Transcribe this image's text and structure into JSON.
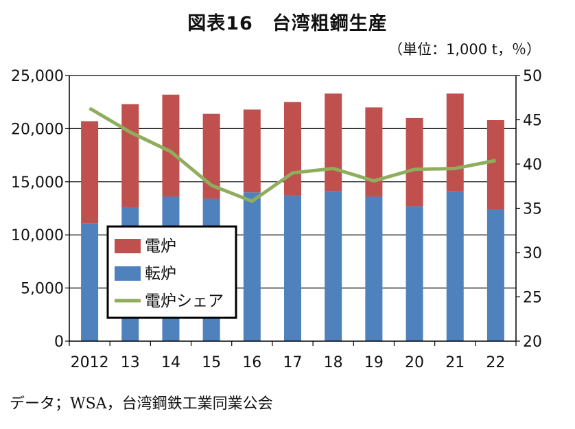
{
  "chart_data": {
    "type": "bar",
    "title": "図表16　台湾粗鋼生産",
    "unit_note": "（単位：1,000 t，％）",
    "source": "データ；WSA，台湾鋼鉄工業同業公会",
    "categories": [
      "2012",
      "13",
      "14",
      "15",
      "16",
      "17",
      "18",
      "19",
      "20",
      "21",
      "22"
    ],
    "stacked": true,
    "series": [
      {
        "name": "転炉",
        "kind": "bar",
        "axis": "left",
        "color": "#4f81bd",
        "values": [
          11100,
          12600,
          13600,
          13400,
          14000,
          13700,
          14100,
          13600,
          12700,
          14100,
          12400
        ]
      },
      {
        "name": "電炉",
        "kind": "bar",
        "axis": "left",
        "color": "#c0504d",
        "values": [
          9600,
          9700,
          9600,
          8000,
          7800,
          8800,
          9200,
          8400,
          8300,
          9200,
          8400
        ]
      },
      {
        "name": "電炉シェア",
        "kind": "line",
        "axis": "right",
        "color": "#8fae5d",
        "values": [
          46.3,
          43.6,
          41.4,
          37.6,
          35.8,
          39.0,
          39.5,
          38.1,
          39.4,
          39.5,
          40.4
        ]
      }
    ],
    "y_left": {
      "min": 0,
      "max": 25000,
      "ticks": [
        "0",
        "5,000",
        "10,000",
        "15,000",
        "20,000",
        "25,000"
      ]
    },
    "y_right": {
      "min": 20,
      "max": 50,
      "ticks": [
        "20",
        "25",
        "30",
        "35",
        "40",
        "45",
        "50"
      ]
    },
    "grid": true,
    "legend": {
      "placement": "bottom-left",
      "entries": [
        "電炉",
        "転炉",
        "電炉シェア"
      ]
    }
  }
}
